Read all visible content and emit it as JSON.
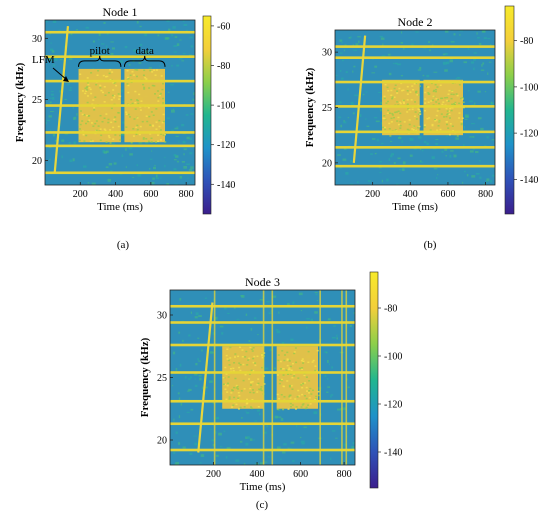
{
  "colors": {
    "background": "#2f8fb8",
    "band": "#e5d536",
    "signal": "#f0c640",
    "noise_green": "#3fb48a",
    "colormap": [
      "#3b1e8c",
      "#2f52b8",
      "#1f92c9",
      "#22b68f",
      "#8ccf4a",
      "#f3cf3b",
      "#f7ea2a"
    ]
  },
  "chart_data": [
    {
      "type": "heatmap",
      "panel": "(a)",
      "title": "Node 1",
      "xlabel": "Time (ms)",
      "ylabel": "Frequency (kHz)",
      "xlim": [
        0,
        850
      ],
      "ylim": [
        18,
        31.5
      ],
      "xticks": [
        200,
        400,
        600,
        800
      ],
      "yticks": [
        20,
        25,
        30
      ],
      "colorbar": {
        "range": [
          -155,
          -55
        ],
        "ticks": [
          -60,
          -80,
          -100,
          -120,
          -140
        ]
      },
      "lfm": {
        "t": [
          55,
          130
        ],
        "f": [
          19,
          31
        ]
      },
      "signal_blocks": [
        {
          "t": [
            190,
            430
          ],
          "f": [
            21.5,
            27.5
          ]
        },
        {
          "t": [
            450,
            680
          ],
          "f": [
            21.5,
            27.5
          ]
        }
      ],
      "tonal_bands_khz": [
        19,
        21.2,
        22.3,
        24.5,
        26.5,
        28.5,
        30.5
      ],
      "annotations": [
        "LFM",
        "pilot",
        "data"
      ]
    },
    {
      "type": "heatmap",
      "panel": "(b)",
      "title": "Node 2",
      "xlabel": "Time (ms)",
      "ylabel": "Frequency (kHz)",
      "xlim": [
        0,
        850
      ],
      "ylim": [
        18,
        32
      ],
      "xticks": [
        200,
        400,
        600,
        800
      ],
      "yticks": [
        20,
        25,
        30
      ],
      "colorbar": {
        "range": [
          -155,
          -65
        ],
        "ticks": [
          -80,
          -100,
          -120,
          -140
        ]
      },
      "lfm": {
        "t": [
          100,
          160
        ],
        "f": [
          20,
          31.5
        ]
      },
      "signal_blocks": [
        {
          "t": [
            250,
            450
          ],
          "f": [
            22.5,
            27.5
          ]
        },
        {
          "t": [
            470,
            680
          ],
          "f": [
            22.5,
            27.5
          ]
        }
      ],
      "tonal_bands_khz": [
        19.7,
        21.4,
        22.8,
        25.1,
        27.3,
        29.5,
        30.5
      ]
    },
    {
      "type": "heatmap",
      "panel": "(c)",
      "title": "Node 3",
      "xlabel": "Time (ms)",
      "ylabel": "Frequency (kHz)",
      "xlim": [
        0,
        850
      ],
      "ylim": [
        18,
        32
      ],
      "xticks": [
        200,
        400,
        600,
        800
      ],
      "yticks": [
        20,
        25,
        30
      ],
      "colorbar": {
        "range": [
          -155,
          -65
        ],
        "ticks": [
          -80,
          -100,
          -120,
          -140
        ]
      },
      "lfm": {
        "t": [
          130,
          195
        ],
        "f": [
          19,
          31
        ]
      },
      "signal_blocks": [
        {
          "t": [
            240,
            430
          ],
          "f": [
            22.5,
            27.5
          ]
        },
        {
          "t": [
            490,
            680
          ],
          "f": [
            22.5,
            27.5
          ]
        }
      ],
      "tonal_bands_khz": [
        19.2,
        21.3,
        23.1,
        25.4,
        27.6,
        29.4,
        30.7
      ]
    }
  ]
}
